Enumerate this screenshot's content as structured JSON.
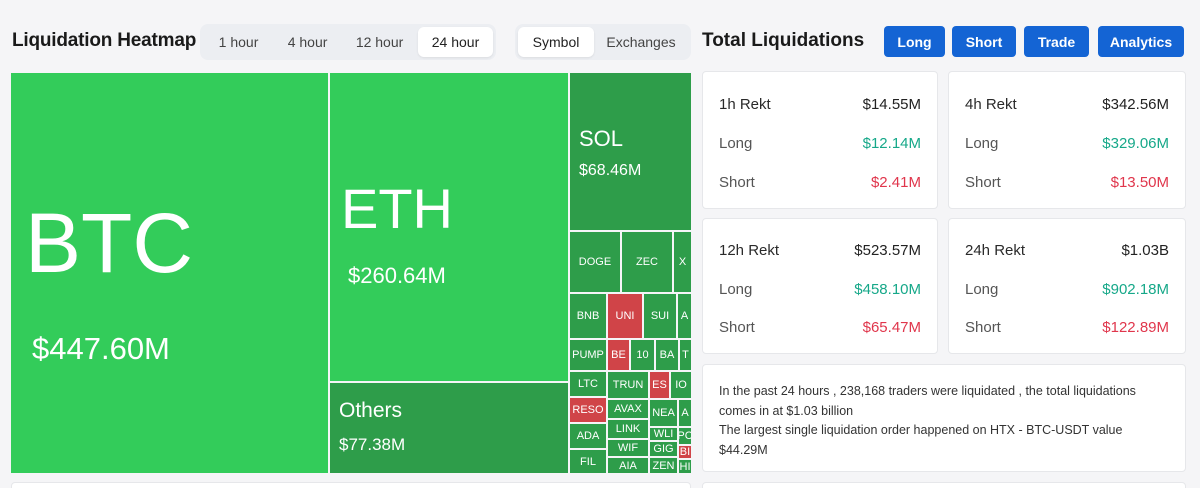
{
  "heatmap": {
    "title": "Liquidation Heatmap",
    "time_options": [
      "1 hour",
      "4 hour",
      "12 hour",
      "24 hour"
    ],
    "time_selected": "24 hour",
    "mode_options": [
      "Symbol",
      "Exchanges"
    ],
    "mode_selected": "Symbol",
    "colors": {
      "long": "#33cc5a",
      "long_dark": "#2e9d4a",
      "short": "#d04448"
    },
    "cells": [
      {
        "symbol": "BTC",
        "value": "$447.60M"
      },
      {
        "symbol": "ETH",
        "value": "$260.64M"
      },
      {
        "symbol": "Others",
        "value": "$77.38M"
      },
      {
        "symbol": "SOL",
        "value": "$68.46M"
      },
      {
        "symbol": "DOGE"
      },
      {
        "symbol": "ZEC"
      },
      {
        "symbol": "X"
      },
      {
        "symbol": "BNB"
      },
      {
        "symbol": "UNI"
      },
      {
        "symbol": "SUI"
      },
      {
        "symbol": "A"
      },
      {
        "symbol": "PUMP"
      },
      {
        "symbol": "BE"
      },
      {
        "symbol": "10"
      },
      {
        "symbol": "BA"
      },
      {
        "symbol": "T"
      },
      {
        "symbol": "LTC"
      },
      {
        "symbol": "TRUN"
      },
      {
        "symbol": "ES"
      },
      {
        "symbol": "IO"
      },
      {
        "symbol": "RESO"
      },
      {
        "symbol": "AVAX"
      },
      {
        "symbol": "NEA"
      },
      {
        "symbol": "A"
      },
      {
        "symbol": "LINK"
      },
      {
        "symbol": "WLI"
      },
      {
        "symbol": "ADA"
      },
      {
        "symbol": "PC"
      },
      {
        "symbol": "WIF"
      },
      {
        "symbol": "GIG"
      },
      {
        "symbol": "BI"
      },
      {
        "symbol": "FIL"
      },
      {
        "symbol": "AIA"
      },
      {
        "symbol": "ZEN"
      },
      {
        "symbol": "HI"
      }
    ]
  },
  "total": {
    "title": "Total Liquidations",
    "buttons": [
      "Long",
      "Short",
      "Trade",
      "Analytics"
    ],
    "cards": [
      {
        "label": "1h Rekt",
        "total": "$14.55M",
        "long_label": "Long",
        "long": "$12.14M",
        "short_label": "Short",
        "short": "$2.41M"
      },
      {
        "label": "4h Rekt",
        "total": "$342.56M",
        "long_label": "Long",
        "long": "$329.06M",
        "short_label": "Short",
        "short": "$13.50M"
      },
      {
        "label": "12h Rekt",
        "total": "$523.57M",
        "long_label": "Long",
        "long": "$458.10M",
        "short_label": "Short",
        "short": "$65.47M"
      },
      {
        "label": "24h Rekt",
        "total": "$1.03B",
        "long_label": "Long",
        "long": "$902.18M",
        "short_label": "Short",
        "short": "$122.89M"
      }
    ],
    "summary_line1": "In the past 24 hours , 238,168 traders were liquidated , the total liquidations comes in at $1.03 billion",
    "summary_line2": "The largest single liquidation order happened on HTX - BTC-USDT value $44.29M"
  }
}
